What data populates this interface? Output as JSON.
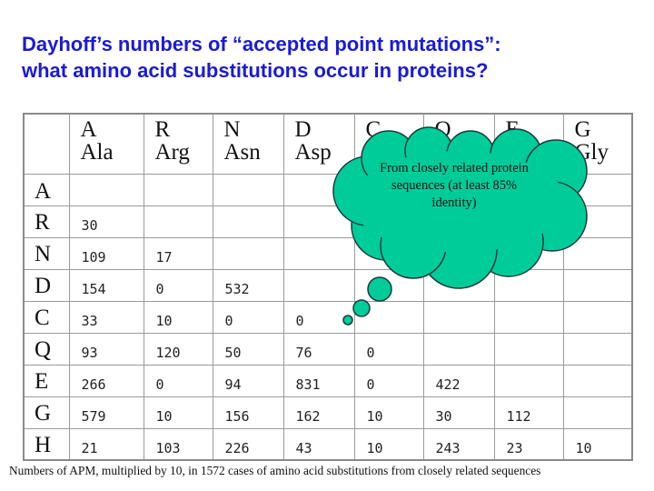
{
  "title": {
    "line1": "Dayhoff’s numbers of “accepted point mutations”:",
    "line2": "what amino acid substitutions occur in proteins?"
  },
  "columns": [
    {
      "letter": "A",
      "name": "Ala"
    },
    {
      "letter": "R",
      "name": "Arg"
    },
    {
      "letter": "N",
      "name": "Asn"
    },
    {
      "letter": "D",
      "name": "Asp"
    },
    {
      "letter": "C",
      "name": ""
    },
    {
      "letter": "Q",
      "name": ""
    },
    {
      "letter": "E",
      "name": ""
    },
    {
      "letter": "G",
      "name": "Gly"
    }
  ],
  "rows": [
    {
      "letter": "A",
      "values": [
        "",
        "",
        "",
        "",
        "",
        "",
        "",
        ""
      ]
    },
    {
      "letter": "R",
      "values": [
        "30",
        "",
        "",
        "",
        "",
        "",
        "",
        ""
      ]
    },
    {
      "letter": "N",
      "values": [
        "109",
        "17",
        "",
        "",
        "",
        "",
        "",
        ""
      ]
    },
    {
      "letter": "D",
      "values": [
        "154",
        "0",
        "532",
        "",
        "",
        "",
        "",
        ""
      ]
    },
    {
      "letter": "C",
      "values": [
        "33",
        "10",
        "0",
        "0",
        "",
        "",
        "",
        ""
      ]
    },
    {
      "letter": "Q",
      "values": [
        "93",
        "120",
        "50",
        "76",
        "0",
        "",
        "",
        ""
      ]
    },
    {
      "letter": "E",
      "values": [
        "266",
        "0",
        "94",
        "831",
        "0",
        "422",
        "",
        ""
      ]
    },
    {
      "letter": "G",
      "values": [
        "579",
        "10",
        "156",
        "162",
        "10",
        "30",
        "112",
        ""
      ]
    },
    {
      "letter": "H",
      "values": [
        "21",
        "103",
        "226",
        "43",
        "10",
        "243",
        "23",
        "10"
      ]
    }
  ],
  "callout": {
    "text": "From closely related protein sequences (at least 85% identity)",
    "color": "#00cc99"
  },
  "caption": "Numbers of APM, multiplied by 10, in 1572 cases of amino acid substitutions from closely related sequences"
}
